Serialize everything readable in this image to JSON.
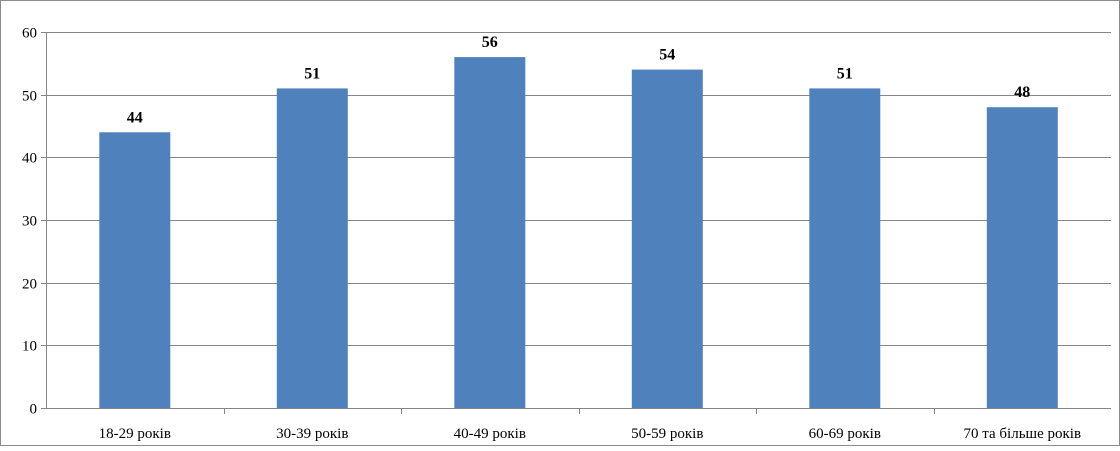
{
  "chart_data": {
    "type": "bar",
    "title": "",
    "xlabel": "",
    "ylabel": "",
    "categories": [
      "18-29 років",
      "30-39 років",
      "40-49 років",
      "50-59 років",
      "60-69 років",
      "70 та більше років"
    ],
    "values": [
      44,
      51,
      56,
      54,
      51,
      48
    ],
    "ylim": [
      0,
      60
    ],
    "yticks": [
      0,
      10,
      20,
      30,
      40,
      50,
      60
    ],
    "grid": true,
    "legend": "none",
    "bar_color": "#4f81bd",
    "grid_color": "#868686"
  }
}
